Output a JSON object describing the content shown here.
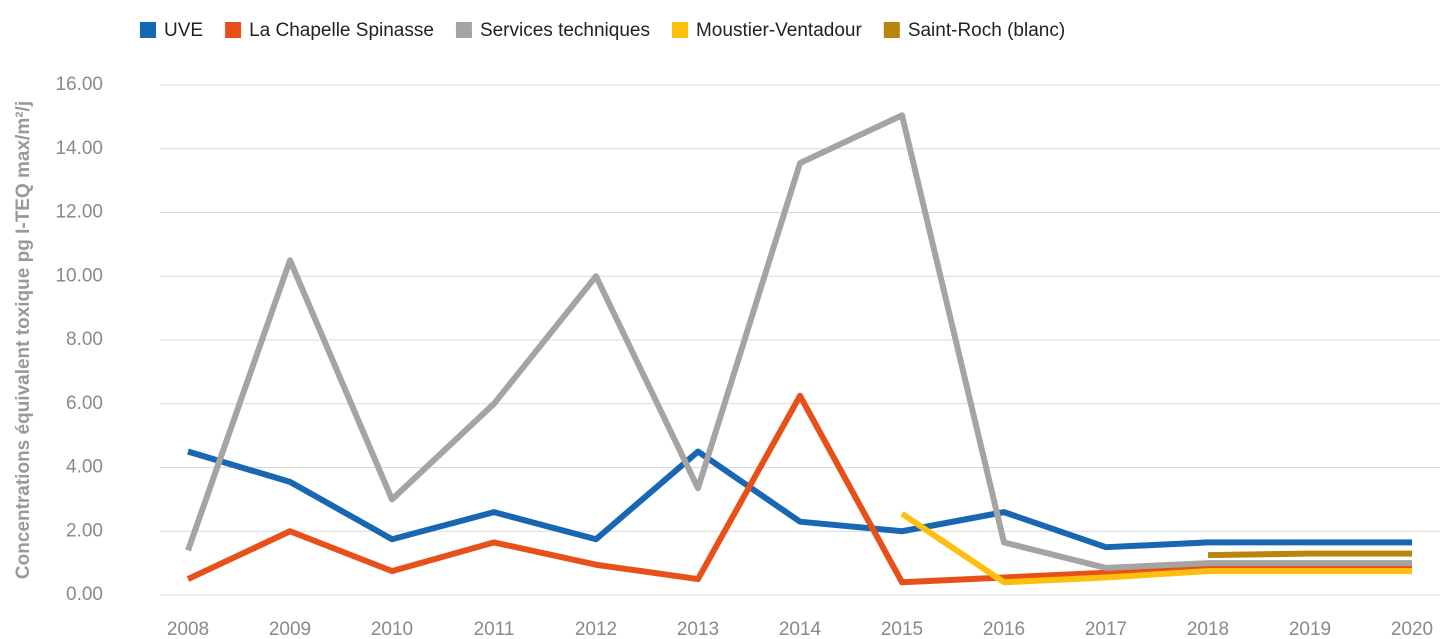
{
  "chart_data": {
    "type": "line",
    "y_label": "Concentrations équivalent toxique pg I-TEQ max/m²/j",
    "categories": [
      "2008",
      "2009",
      "2010",
      "2011",
      "2012",
      "2013",
      "2014",
      "2015",
      "2016",
      "2017",
      "2018",
      "2019",
      "2020"
    ],
    "series": [
      {
        "name": "UVE",
        "color": "#1767b3",
        "values": [
          4.5,
          3.55,
          1.75,
          2.6,
          1.75,
          4.5,
          2.3,
          2.0,
          2.6,
          1.5,
          1.65,
          1.65,
          1.65
        ]
      },
      {
        "name": "La Chapelle Spinasse",
        "color": "#e8501a",
        "values": [
          0.5,
          2.0,
          0.75,
          1.65,
          0.95,
          0.5,
          6.25,
          0.4,
          0.55,
          0.7,
          0.85,
          0.85,
          0.85
        ]
      },
      {
        "name": "Services techniques",
        "color": "#a6a4a1",
        "values": [
          1.4,
          10.5,
          3.0,
          6.0,
          10.0,
          3.35,
          13.55,
          15.05,
          1.65,
          0.85,
          1.0,
          1.0,
          1.0
        ]
      },
      {
        "name": "Moustier-Ventadour",
        "color": "#fdc00f",
        "values": [
          null,
          null,
          null,
          null,
          null,
          null,
          null,
          2.55,
          0.4,
          0.55,
          0.75,
          0.75,
          0.75
        ]
      },
      {
        "name": "Saint-Roch (blanc)",
        "color": "#b8860b",
        "values": [
          null,
          null,
          null,
          null,
          null,
          null,
          null,
          null,
          null,
          null,
          1.25,
          1.3,
          1.3
        ]
      }
    ],
    "ylim": [
      0,
      16
    ],
    "yticks": [
      {
        "value": 0,
        "label": "0.00"
      },
      {
        "value": 2,
        "label": "2.00"
      },
      {
        "value": 4,
        "label": "4.00"
      },
      {
        "value": 6,
        "label": "6.00"
      },
      {
        "value": 8,
        "label": "8.00"
      },
      {
        "value": 10,
        "label": "10.00"
      },
      {
        "value": 12,
        "label": "12.00"
      },
      {
        "value": 14,
        "label": "14.00"
      },
      {
        "value": 16,
        "label": "16.00"
      }
    ],
    "grid": true,
    "legend": "top"
  }
}
